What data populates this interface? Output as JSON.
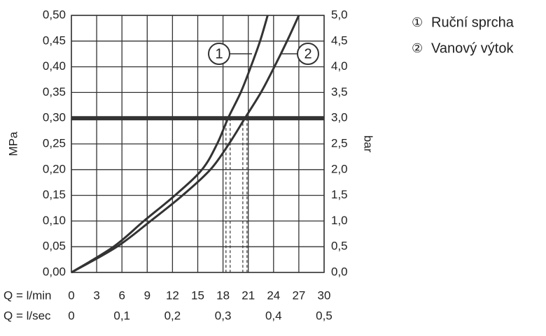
{
  "chart_data": {
    "type": "line",
    "xlabel": "Q = l/min",
    "x2label": "Q = l/sec",
    "ylabel": "MPa",
    "y2label": "bar",
    "xlim": [
      0,
      30
    ],
    "xticks": [
      0,
      3,
      6,
      9,
      12,
      15,
      18,
      21,
      24,
      27,
      30
    ],
    "x2lim": [
      0,
      0.5
    ],
    "x2ticks": [
      0,
      {
        "value": 0.1,
        "label": "0,1"
      },
      {
        "value": 0.2,
        "label": "0,2"
      },
      {
        "value": 0.3,
        "label": "0,3"
      },
      {
        "value": 0.4,
        "label": "0,4"
      },
      {
        "value": 0.5,
        "label": "0,5"
      }
    ],
    "ylim": [
      0,
      0.5
    ],
    "yticks": [
      {
        "value": 0,
        "label": "0,00"
      },
      {
        "value": 0.05,
        "label": "0,05"
      },
      {
        "value": 0.1,
        "label": "0,10"
      },
      {
        "value": 0.15,
        "label": "0,15"
      },
      {
        "value": 0.2,
        "label": "0,20"
      },
      {
        "value": 0.25,
        "label": "0,25"
      },
      {
        "value": 0.3,
        "label": "0,30"
      },
      {
        "value": 0.35,
        "label": "0,35"
      },
      {
        "value": 0.4,
        "label": "0,40"
      },
      {
        "value": 0.45,
        "label": "0,45"
      },
      {
        "value": 0.5,
        "label": "0,50"
      }
    ],
    "y2lim": [
      0,
      5
    ],
    "y2ticks": [
      {
        "value": 0,
        "label": "0,0"
      },
      {
        "value": 0.5,
        "label": "0,5"
      },
      {
        "value": 1,
        "label": "1,0"
      },
      {
        "value": 1.5,
        "label": "1,5"
      },
      {
        "value": 2,
        "label": "2,0"
      },
      {
        "value": 2.5,
        "label": "2,5"
      },
      {
        "value": 3,
        "label": "3,0"
      },
      {
        "value": 3.5,
        "label": "3,5"
      },
      {
        "value": 4,
        "label": "4,0"
      },
      {
        "value": 4.5,
        "label": "4,5"
      },
      {
        "value": 5,
        "label": "5,0"
      }
    ],
    "grid": true,
    "reference_line": 0.3,
    "series": [
      {
        "name": "Ruční sprcha",
        "marker": "①",
        "callout": "1",
        "color": "#333333",
        "x": [
          0,
          5,
          8.6,
          12.3,
          15.5,
          17.3,
          18.6,
          20.1,
          21.3,
          22.4,
          23.3
        ],
        "values": [
          0,
          0.05,
          0.1,
          0.15,
          0.2,
          0.25,
          0.3,
          0.35,
          0.4,
          0.45,
          0.5
        ]
      },
      {
        "name": "Vanový výtok",
        "marker": "②",
        "callout": "2",
        "color": "#333333",
        "x": [
          0,
          5.4,
          9.4,
          13.2,
          16.5,
          18.7,
          20.6,
          22.5,
          24.1,
          25.6,
          27.0
        ],
        "values": [
          0,
          0.05,
          0.1,
          0.15,
          0.2,
          0.25,
          0.3,
          0.35,
          0.4,
          0.45,
          0.5
        ]
      }
    ]
  }
}
